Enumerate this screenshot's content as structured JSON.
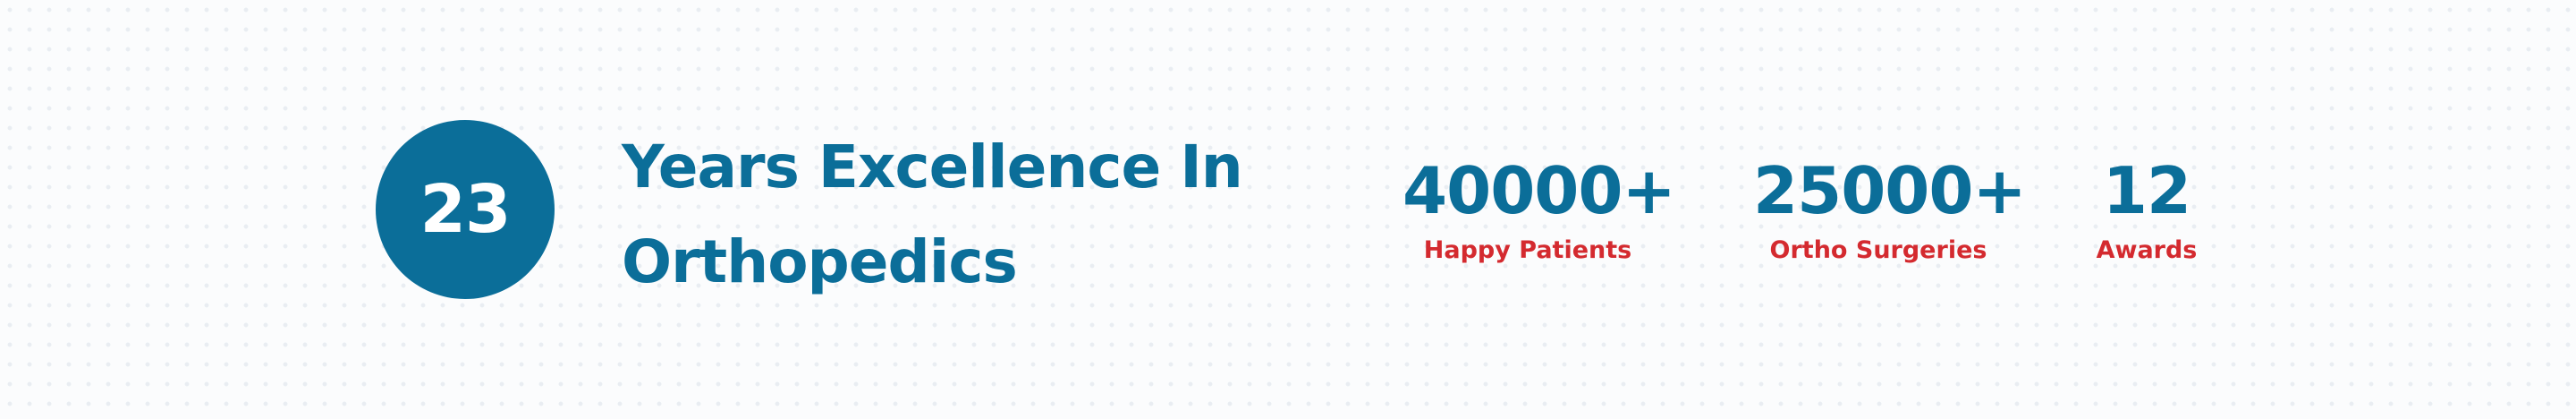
{
  "experience": {
    "years": "23",
    "headline_line1": "Years Excellence In",
    "headline_line2": "Orthopedics"
  },
  "stats": [
    {
      "value": "40000+",
      "label": "Happy Patients"
    },
    {
      "value": "25000+",
      "label": "Ortho Surgeries"
    },
    {
      "value": "12",
      "label": "Awards"
    }
  ],
  "colors": {
    "brand_blue": "#0b6e99",
    "accent_red": "#d42a2f",
    "background": "#fbfcfd"
  }
}
